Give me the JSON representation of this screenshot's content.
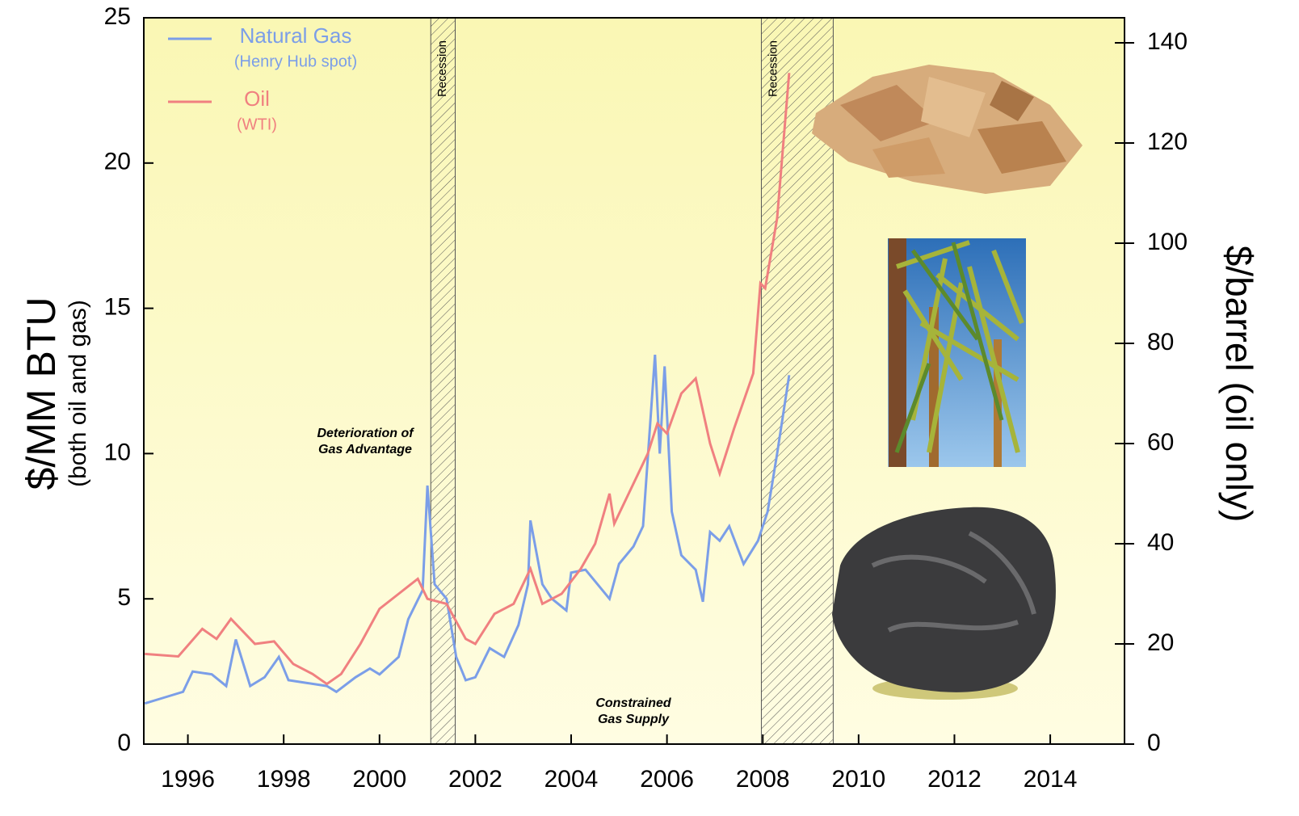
{
  "chart_data": {
    "type": "line",
    "ylabel": "$/MM BTU",
    "ylabel_sub": "(both oil and gas)",
    "y2label": "$/barrel (oil only)",
    "xlim": [
      1995.08,
      2015.55
    ],
    "xticks": [
      1996,
      1998,
      2000,
      2002,
      2004,
      2006,
      2008,
      2010,
      2012,
      2014
    ],
    "ylim": [
      0,
      25
    ],
    "yticks": [
      0,
      5,
      10,
      15,
      20,
      25
    ],
    "y2lim": [
      0,
      145
    ],
    "y2ticks": [
      0,
      20,
      40,
      60,
      80,
      100,
      120,
      140
    ],
    "series": [
      {
        "name": "Natural Gas",
        "note": "(Henry Hub spot)",
        "color": "#7b9ee8",
        "x": [
          1995.1,
          1995.5,
          1995.9,
          1996.1,
          1996.5,
          1996.8,
          1997.0,
          1997.3,
          1997.6,
          1997.9,
          1998.1,
          1998.5,
          1998.9,
          1999.1,
          1999.5,
          1999.8,
          2000.0,
          2000.4,
          2000.6,
          2000.9,
          2001.0,
          2001.15,
          2001.4,
          2001.6,
          2001.8,
          2002.0,
          2002.3,
          2002.6,
          2002.9,
          2003.1,
          2003.15,
          2003.4,
          2003.6,
          2003.9,
          2004.0,
          2004.3,
          2004.5,
          2004.8,
          2005.0,
          2005.3,
          2005.5,
          2005.75,
          2005.85,
          2005.95,
          2006.1,
          2006.3,
          2006.6,
          2006.75,
          2006.9,
          2007.1,
          2007.3,
          2007.6,
          2007.9,
          2008.1,
          2008.3,
          2008.55
        ],
        "values": [
          1.4,
          1.6,
          1.8,
          2.5,
          2.4,
          2.0,
          3.6,
          2.0,
          2.3,
          3.0,
          2.2,
          2.1,
          2.0,
          1.8,
          2.3,
          2.6,
          2.4,
          3.0,
          4.3,
          5.3,
          8.9,
          5.5,
          5.0,
          3.0,
          2.2,
          2.3,
          3.3,
          3.0,
          4.1,
          5.5,
          7.7,
          5.5,
          5.0,
          4.6,
          5.9,
          6.0,
          5.6,
          5.0,
          6.2,
          6.8,
          7.5,
          13.4,
          10.0,
          13.0,
          8.0,
          6.5,
          6.0,
          4.9,
          7.3,
          7.0,
          7.5,
          6.2,
          7.0,
          8.0,
          10.0,
          12.7
        ]
      },
      {
        "name": "Oil",
        "note": "(WTI)",
        "color": "#f08080",
        "axis": "y2",
        "x": [
          1995.1,
          1995.8,
          1996.3,
          1996.6,
          1996.9,
          1997.4,
          1997.8,
          1998.2,
          1998.6,
          1998.9,
          1999.2,
          1999.6,
          2000.0,
          2000.4,
          2000.8,
          2001.0,
          2001.4,
          2001.8,
          2002.0,
          2002.4,
          2002.8,
          2003.15,
          2003.4,
          2003.8,
          2004.2,
          2004.5,
          2004.8,
          2004.9,
          2005.2,
          2005.6,
          2005.8,
          2006.0,
          2006.3,
          2006.6,
          2006.9,
          2007.1,
          2007.4,
          2007.8,
          2007.95,
          2008.05,
          2008.3,
          2008.55
        ],
        "values": [
          18,
          17.5,
          23,
          21,
          25,
          20,
          20.5,
          16,
          14,
          12,
          14,
          20,
          27,
          30,
          33,
          29,
          28,
          21,
          20,
          26,
          28,
          35,
          28,
          30,
          35,
          40,
          50,
          44,
          50,
          58,
          64,
          62,
          70,
          73,
          60,
          54,
          63,
          74,
          92,
          91,
          105,
          134
        ]
      }
    ],
    "shaded": [
      {
        "start": 2001.07,
        "end": 2001.58,
        "label": "Recession"
      },
      {
        "start": 2007.97,
        "end": 2009.47,
        "label": "Recession"
      }
    ],
    "annotations": [
      [
        "Deterioration of",
        "Gas Advantage"
      ],
      [
        "Constrained",
        "Gas Supply"
      ]
    ]
  }
}
